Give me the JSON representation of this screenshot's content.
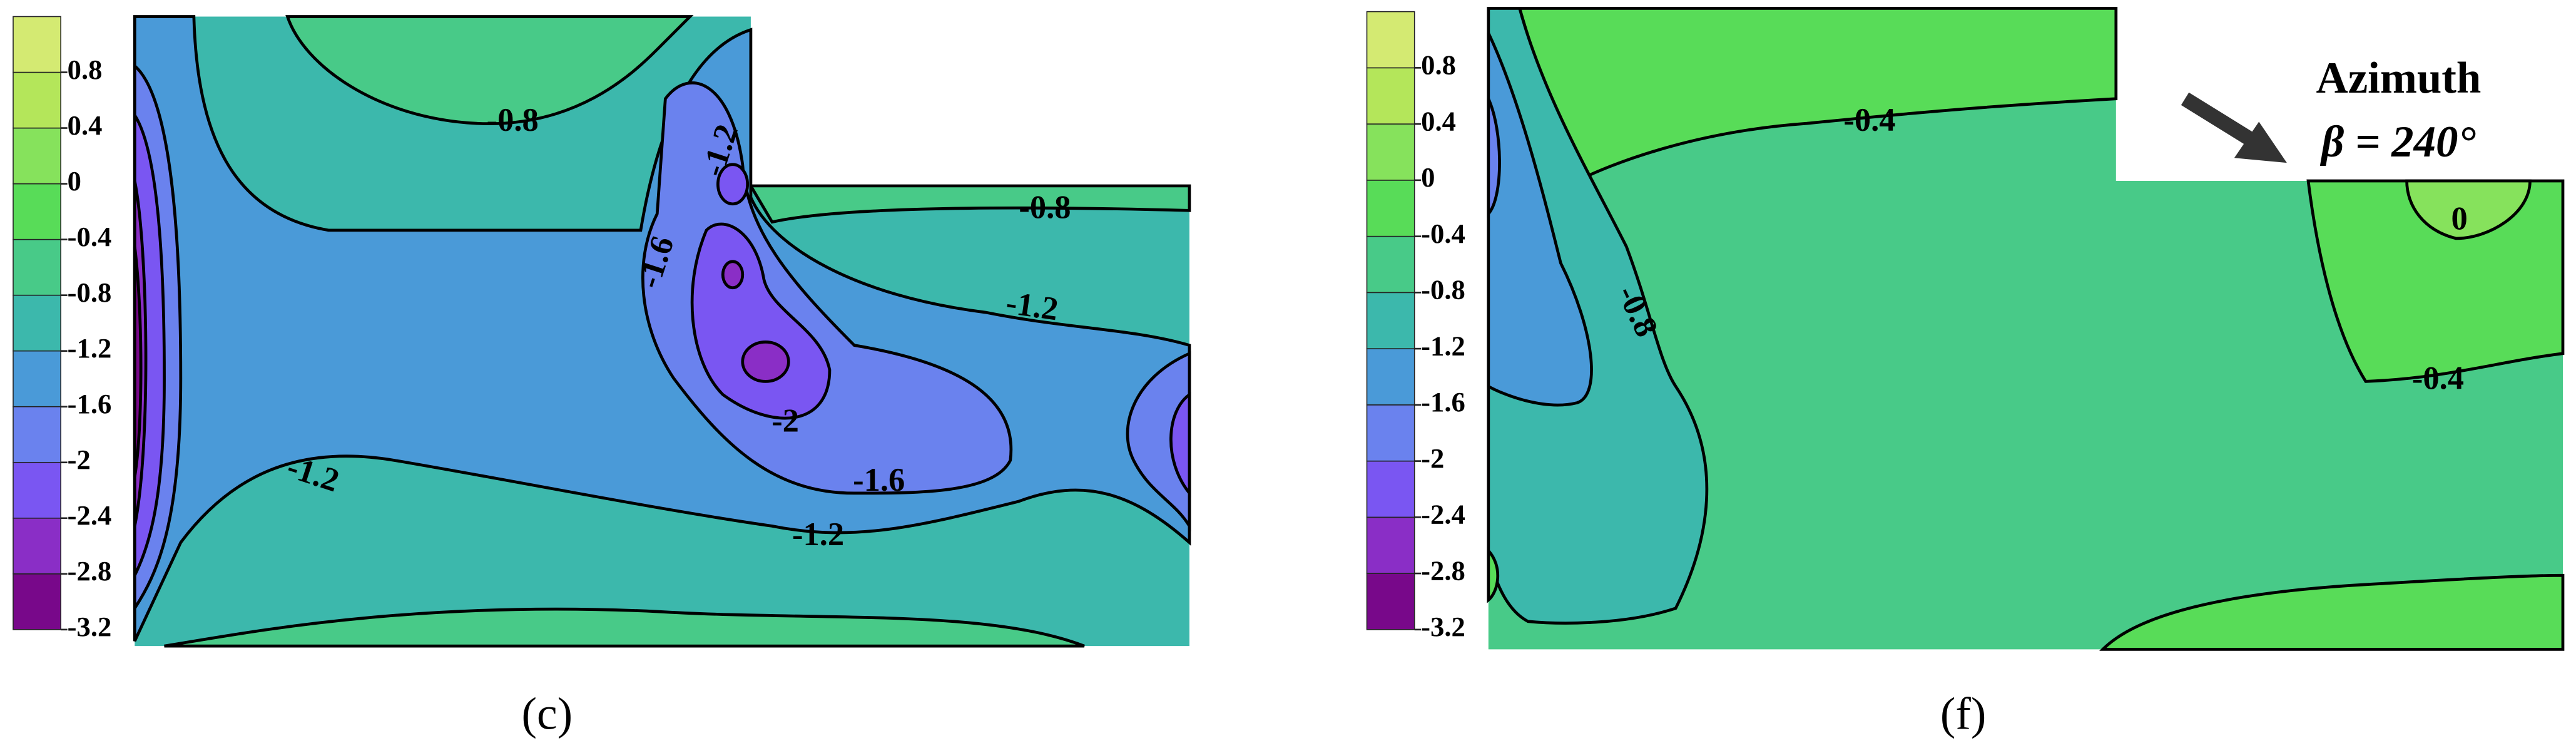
{
  "panels": [
    {
      "label": "(c)",
      "colorbar": {
        "clim": [
          -3.2,
          1.2
        ],
        "ticks": [
          -3.2,
          -2.8,
          -2.4,
          -2,
          -1.6,
          -1.2,
          -0.8,
          -0.4,
          0,
          0.4,
          0.8
        ],
        "colors": [
          "#78088a",
          "#8a2ec6",
          "#7a56f2",
          "#6a82ee",
          "#4a9ad8",
          "#3cb8ac",
          "#48ca88",
          "#58dc58",
          "#86e25c",
          "#b4e65a",
          "#d4ea72"
        ]
      },
      "contour_labels": [
        -0.8,
        -1.2,
        -1.6,
        -2,
        -1.6,
        -1.2,
        -1.2,
        -0.8,
        -1.2
      ]
    },
    {
      "label": "(f)",
      "colorbar": {
        "clim": [
          -3.2,
          1.2
        ],
        "ticks": [
          -3.2,
          -2.8,
          -2.4,
          -2,
          -1.6,
          -1.2,
          -0.8,
          -0.4,
          0,
          0.4,
          0.8
        ],
        "colors": [
          "#78088a",
          "#8a2ec6",
          "#7a56f2",
          "#6a82ee",
          "#4a9ad8",
          "#3cb8ac",
          "#48ca88",
          "#58dc58",
          "#86e25c",
          "#b4e65a",
          "#d4ea72"
        ]
      },
      "contour_labels": [
        -0.4,
        -0.8,
        0,
        -0.4
      ],
      "annotation": {
        "line1": "Azimuth",
        "line2": "β = 240°"
      }
    }
  ]
}
